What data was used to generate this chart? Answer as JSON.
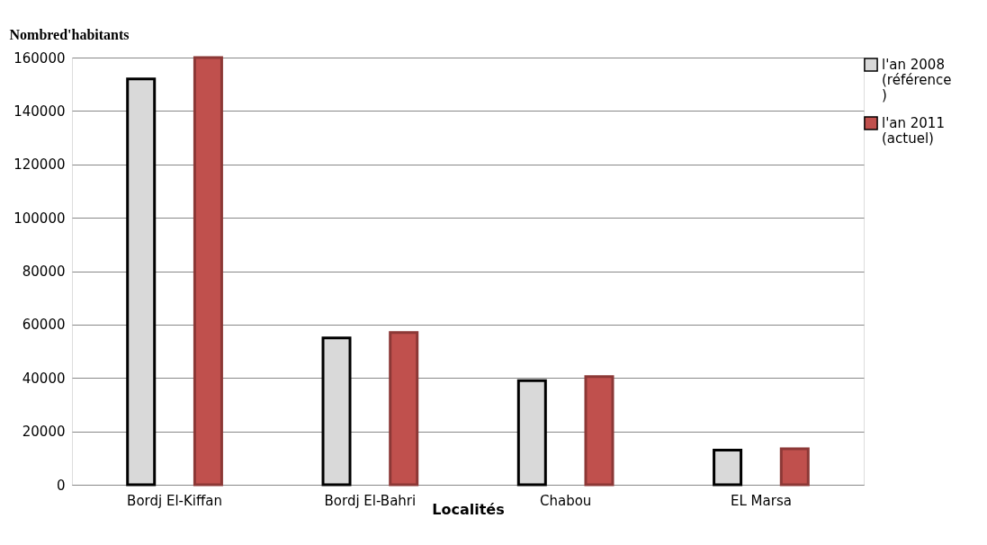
{
  "chart_data": {
    "type": "bar",
    "ylabel": "Nombred'habitants",
    "xlabel": "Localités",
    "categories": [
      "Bordj El-Kiffan",
      "Bordj El-Bahri",
      "Chabou",
      "EL Marsa"
    ],
    "series": [
      {
        "name": "l'an 2008 (référence)",
        "color": "#d9d9d9",
        "values": [
          152000,
          55000,
          39000,
          13000
        ]
      },
      {
        "name": "l'an 2011 (actuel)",
        "color": "#c0504d",
        "values": [
          160000,
          57000,
          40500,
          13500
        ]
      }
    ],
    "ylim": [
      0,
      160000
    ],
    "yticks": [
      0,
      20000,
      40000,
      60000,
      80000,
      100000,
      120000,
      140000,
      160000
    ],
    "grid": "y",
    "legend": "top right"
  }
}
